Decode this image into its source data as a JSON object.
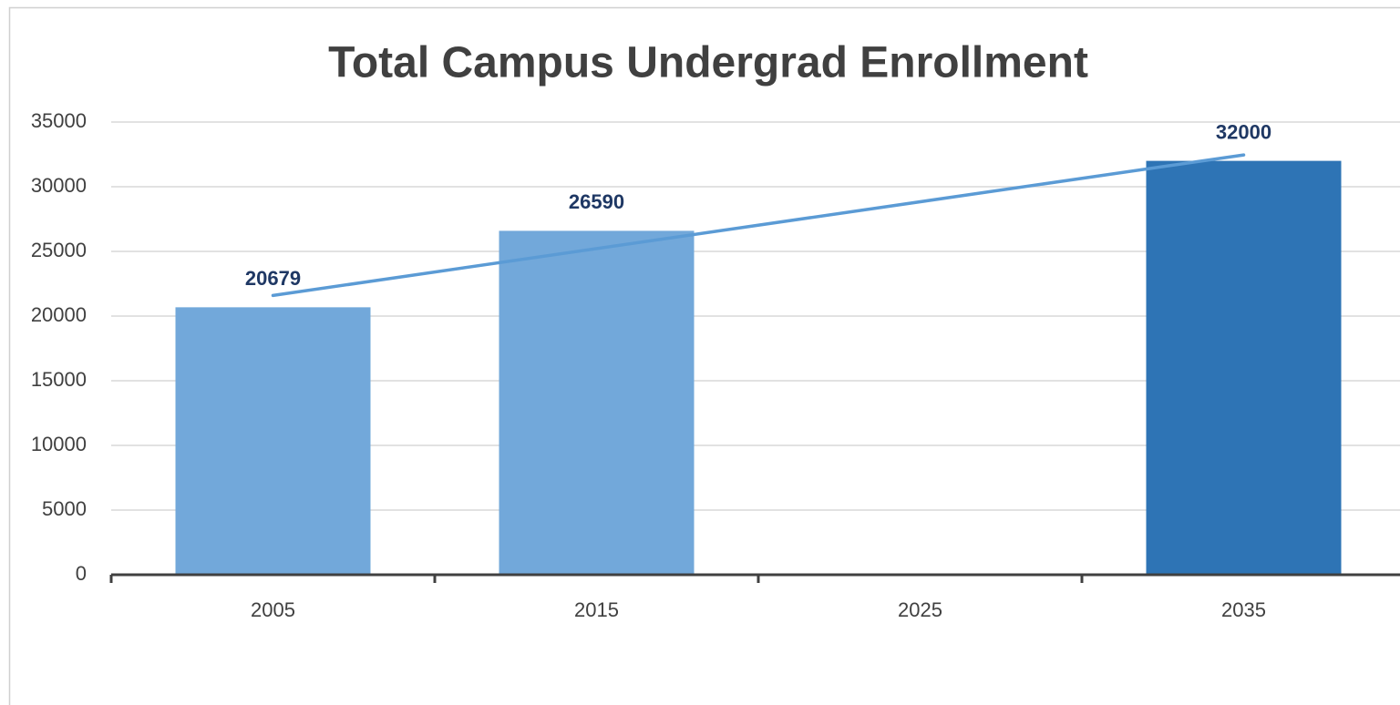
{
  "chart_data": {
    "type": "bar",
    "title": "Total Campus Undergrad Enrollment",
    "categories": [
      "2005",
      "2015",
      "2025",
      "2035"
    ],
    "values": [
      20679,
      26590,
      null,
      32000
    ],
    "colors": [
      "#72a8da",
      "#72a8da",
      "#72a8da",
      "#2e74b5"
    ],
    "ylim": [
      0,
      35000
    ],
    "yticks": [
      0,
      5000,
      10000,
      15000,
      20000,
      25000,
      30000,
      35000
    ],
    "grid": true,
    "trendline": "linear",
    "trendline_color": "#5b9bd5",
    "value_label_color": "#1f3864"
  }
}
